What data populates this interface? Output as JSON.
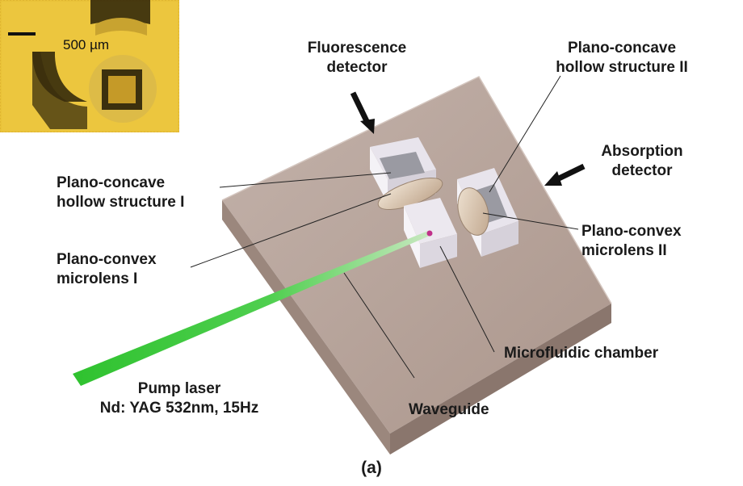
{
  "figure": {
    "caption": "(a)",
    "inset": {
      "scale_bar": "500 µm"
    },
    "labels": {
      "fluorescence_detector": [
        "Fluorescence",
        "detector"
      ],
      "hollow_structure_2": [
        "Plano-concave",
        "hollow structure II"
      ],
      "absorption_detector": [
        "Absorption",
        "detector"
      ],
      "hollow_structure_1": [
        "Plano-concave",
        "hollow structure I"
      ],
      "microlens_1": [
        "Plano-convex",
        "microlens I"
      ],
      "microlens_2": [
        "Plano-convex",
        "microlens II"
      ],
      "microfluidic_chamber": "Microfluidic chamber",
      "waveguide": "Waveguide",
      "pump_laser": [
        "Pump laser",
        "Nd: YAG 532nm, 15Hz"
      ]
    },
    "colors": {
      "chip": "#b3a097",
      "laser": "#3cc43c",
      "inset_background": "#e9c238",
      "label_text": "#1a1a1a"
    }
  }
}
